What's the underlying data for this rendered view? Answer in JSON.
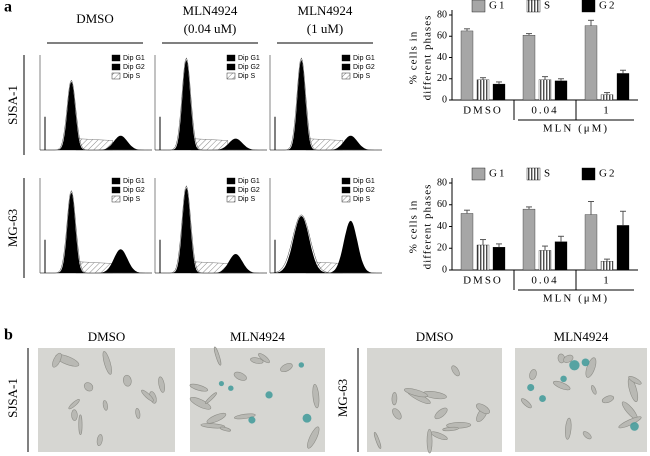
{
  "figure": {
    "panel_a": "a",
    "panel_b": "b",
    "col_headers": [
      {
        "name": "DMSO",
        "dose": null
      },
      {
        "name": "MLN4924",
        "dose": "(0.04 uM)"
      },
      {
        "name": "MLN4924",
        "dose": "(1 uM)"
      }
    ],
    "rows": [
      "SJSA-1",
      "MG-63"
    ],
    "histogram_legend": [
      "Dip G1",
      "Dip G2",
      "Dip S"
    ],
    "image_headers": [
      "DMSO",
      "MLN4924",
      "DMSO",
      "MLN4924"
    ]
  },
  "chart_data": [
    {
      "type": "bar",
      "ylabel": [
        "% cells in",
        "different phases"
      ],
      "categories": [
        "DMSO",
        "0.04",
        "1"
      ],
      "group_label": "MLN (μM)",
      "ylim": [
        0,
        80
      ],
      "yticks": [
        0,
        20,
        40,
        60,
        80
      ],
      "legend": "top",
      "series": [
        {
          "name": "G1",
          "color": "#a6a6a6",
          "values": [
            65,
            61,
            70
          ],
          "errors": [
            2,
            1.5,
            5
          ]
        },
        {
          "name": "S",
          "color": "stripes",
          "values": [
            19,
            19,
            5
          ],
          "errors": [
            2,
            3,
            2
          ]
        },
        {
          "name": "G2",
          "color": "#000000",
          "values": [
            15,
            18,
            25
          ],
          "errors": [
            2,
            2,
            3
          ]
        }
      ]
    },
    {
      "type": "bar",
      "ylabel": [
        "% cells in",
        "different phases"
      ],
      "categories": [
        "DMSO",
        "0.04",
        "1"
      ],
      "group_label": "MLN (μM)",
      "ylim": [
        0,
        80
      ],
      "yticks": [
        0,
        20,
        40,
        60,
        80
      ],
      "legend": "top",
      "series": [
        {
          "name": "G1",
          "color": "#a6a6a6",
          "values": [
            52,
            56,
            51
          ],
          "errors": [
            3,
            2,
            12
          ]
        },
        {
          "name": "S",
          "color": "stripes",
          "values": [
            23,
            18,
            8
          ],
          "errors": [
            5,
            4,
            2
          ]
        },
        {
          "name": "G2",
          "color": "#000000",
          "values": [
            21,
            26,
            41
          ],
          "errors": [
            3,
            5,
            13
          ]
        }
      ]
    }
  ]
}
